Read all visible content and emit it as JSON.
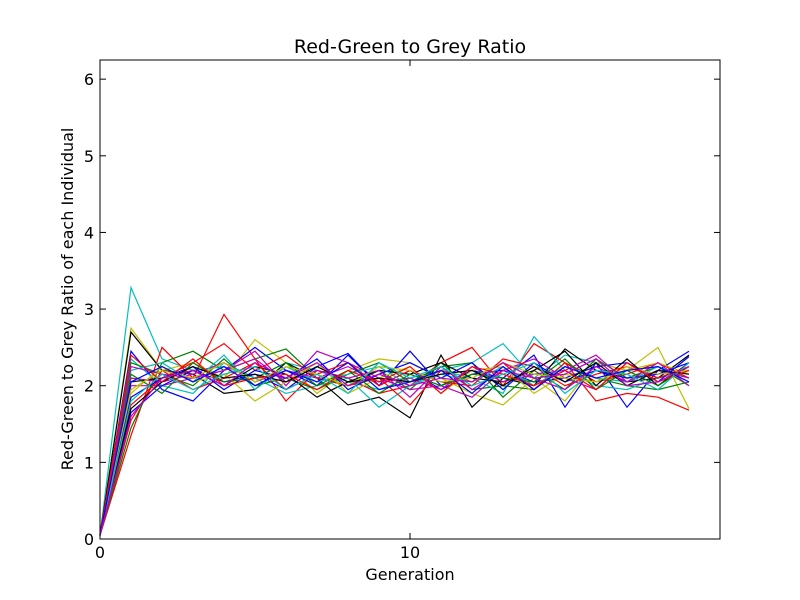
{
  "chart_data": {
    "type": "line",
    "title": "Red-Green to Grey Ratio",
    "xlabel": "Generation",
    "ylabel": "Red-Green to Grey Ratio of each Individual",
    "xlim": [
      0,
      20
    ],
    "ylim": [
      0,
      6.25
    ],
    "x_ticks": [
      0,
      10
    ],
    "y_ticks": [
      0,
      1,
      2,
      3,
      4,
      5,
      6
    ],
    "x_tick_labels": [
      "0",
      "10"
    ],
    "y_tick_labels": [
      "0",
      "1",
      "2",
      "3",
      "4",
      "5",
      "6"
    ],
    "grid": false,
    "legend": "none",
    "x": [
      0,
      1,
      2,
      3,
      4,
      5,
      6,
      7,
      8,
      9,
      10,
      11,
      12,
      13,
      14,
      15,
      16,
      17,
      18,
      19
    ],
    "series": [
      {
        "color": "#00bfbf",
        "values": [
          0.05,
          3.28,
          2.35,
          2.2,
          2.25,
          2.1,
          2.3,
          2.2,
          2.05,
          1.95,
          2.1,
          2.2,
          2.3,
          2.55,
          2.1,
          2.4,
          2.3,
          2.2,
          2.25,
          2.1
        ]
      },
      {
        "color": "#bfbf00",
        "values": [
          0.05,
          2.75,
          2.2,
          2.3,
          2.1,
          2.6,
          2.3,
          1.9,
          2.2,
          2.35,
          2.3,
          2.1,
          1.9,
          1.75,
          2.1,
          1.8,
          2.3,
          2.2,
          2.5,
          1.7
        ]
      },
      {
        "color": "#000000",
        "values": [
          0.05,
          2.7,
          2.2,
          2.15,
          1.9,
          1.95,
          2.3,
          2.1,
          1.75,
          1.85,
          1.58,
          2.4,
          1.72,
          2.1,
          2.0,
          2.48,
          2.2,
          2.05,
          2.1,
          2.4
        ]
      },
      {
        "color": "#ff0000",
        "values": [
          0.05,
          1.35,
          2.5,
          2.1,
          2.93,
          2.35,
          1.8,
          2.2,
          2.1,
          1.9,
          2.0,
          2.3,
          2.5,
          2.0,
          2.55,
          2.3,
          1.8,
          1.9,
          1.85,
          1.68
        ]
      },
      {
        "color": "#0000ff",
        "values": [
          0.05,
          2.45,
          1.95,
          1.8,
          2.2,
          2.5,
          2.2,
          2.0,
          2.4,
          2.0,
          2.45,
          2.0,
          2.2,
          2.1,
          2.4,
          1.72,
          2.3,
          1.72,
          2.2,
          2.45
        ]
      },
      {
        "color": "#008000",
        "values": [
          0.05,
          1.45,
          2.3,
          2.45,
          2.2,
          2.35,
          2.48,
          2.1,
          2.0,
          2.2,
          1.95,
          2.3,
          1.95,
          2.0,
          1.95,
          2.3,
          2.1,
          2.0,
          1.95,
          2.05
        ]
      },
      {
        "color": "#bf00bf",
        "values": [
          0.05,
          2.0,
          2.0,
          2.1,
          2.2,
          2.45,
          2.0,
          2.45,
          2.3,
          2.1,
          1.95,
          2.0,
          1.85,
          2.2,
          2.35,
          2.1,
          1.95,
          2.3,
          2.1,
          2.2
        ]
      },
      {
        "color": "#00bfbf",
        "values": [
          0.05,
          2.35,
          2.0,
          1.9,
          2.3,
          2.1,
          1.9,
          2.0,
          2.1,
          1.72,
          2.0,
          2.2,
          2.1,
          1.9,
          2.64,
          2.2,
          2.0,
          1.95,
          2.1,
          2.2
        ]
      },
      {
        "color": "#ff0000",
        "values": [
          0.05,
          1.75,
          2.1,
          2.3,
          2.55,
          2.2,
          2.4,
          2.1,
          2.0,
          2.1,
          1.75,
          2.2,
          2.05,
          2.3,
          1.95,
          2.3,
          2.05,
          2.15,
          2.3,
          2.1
        ]
      },
      {
        "color": "#0000ff",
        "values": [
          0.05,
          1.65,
          2.0,
          2.2,
          2.05,
          2.15,
          1.95,
          2.25,
          2.42,
          2.0,
          2.2,
          1.95,
          2.15,
          2.2,
          2.05,
          2.1,
          2.25,
          2.3,
          2.05,
          2.38
        ]
      },
      {
        "color": "#008000",
        "values": [
          0.05,
          2.3,
          2.15,
          2.0,
          2.35,
          2.0,
          2.1,
          1.95,
          2.15,
          2.3,
          2.05,
          2.25,
          2.3,
          1.85,
          2.2,
          1.95,
          2.35,
          2.1,
          2.25,
          2.0
        ]
      },
      {
        "color": "#bfbf00",
        "values": [
          0.05,
          1.9,
          2.25,
          2.05,
          2.15,
          1.8,
          2.05,
          2.3,
          1.9,
          2.1,
          2.25,
          1.9,
          2.2,
          2.25,
          1.9,
          2.15,
          2.05,
          2.2,
          2.3,
          2.15
        ]
      },
      {
        "color": "#000000",
        "values": [
          0.05,
          2.05,
          2.1,
          2.2,
          2.0,
          2.25,
          2.15,
          1.85,
          2.05,
          2.2,
          2.15,
          2.3,
          2.1,
          2.05,
          2.2,
          2.45,
          2.0,
          2.35,
          2.0,
          2.3
        ]
      },
      {
        "color": "#bf00bf",
        "values": [
          0.05,
          2.1,
          2.05,
          2.15,
          2.3,
          2.05,
          2.2,
          2.1,
          2.25,
          2.05,
          2.1,
          1.95,
          2.25,
          2.05,
          2.15,
          2.2,
          2.4,
          2.05,
          2.2,
          2.1
        ]
      },
      {
        "color": "#ff0000",
        "values": [
          0.05,
          1.55,
          2.2,
          1.95,
          2.1,
          2.3,
          1.95,
          2.15,
          2.3,
          2.0,
          2.2,
          2.05,
          2.0,
          2.35,
          2.25,
          2.0,
          2.15,
          2.25,
          2.1,
          2.25
        ]
      },
      {
        "color": "#00bfbf",
        "values": [
          0.05,
          2.2,
          2.3,
          2.05,
          2.4,
          1.95,
          2.25,
          2.05,
          2.15,
          2.25,
          2.0,
          2.15,
          2.05,
          2.25,
          2.0,
          2.25,
          2.1,
          2.05,
          2.25,
          2.05
        ]
      },
      {
        "color": "#0000ff",
        "values": [
          0.05,
          1.85,
          2.1,
          2.25,
          1.95,
          2.2,
          2.1,
          2.35,
          1.95,
          2.15,
          2.3,
          2.1,
          2.3,
          1.95,
          2.3,
          2.05,
          2.2,
          2.1,
          2.15,
          2.3
        ]
      },
      {
        "color": "#008000",
        "values": [
          0.05,
          2.15,
          1.9,
          2.3,
          2.05,
          2.1,
          2.3,
          2.0,
          2.2,
          1.9,
          2.15,
          2.0,
          2.15,
          2.1,
          2.05,
          2.35,
          1.95,
          2.2,
          2.0,
          2.25
        ]
      },
      {
        "color": "#bf00bf",
        "values": [
          0.05,
          2.25,
          2.15,
          2.1,
          2.2,
          2.35,
          2.05,
          2.2,
          2.1,
          2.2,
          1.85,
          2.25,
          1.95,
          2.2,
          2.1,
          1.95,
          2.25,
          2.05,
          2.3,
          2.0
        ]
      },
      {
        "color": "#bfbf00",
        "values": [
          0.05,
          1.95,
          2.2,
          2.1,
          2.3,
          2.05,
          2.25,
          2.15,
          2.0,
          2.25,
          2.2,
          2.05,
          2.1,
          2.3,
          2.15,
          2.1,
          2.05,
          2.25,
          2.15,
          2.2
        ]
      },
      {
        "color": "#000000",
        "values": [
          0.05,
          1.7,
          2.05,
          2.25,
          2.1,
          2.15,
          2.05,
          2.25,
          2.05,
          2.1,
          2.05,
          2.15,
          2.2,
          2.0,
          2.25,
          2.05,
          2.3,
          2.0,
          2.2,
          2.15
        ]
      },
      {
        "color": "#ff0000",
        "values": [
          0.05,
          2.4,
          2.05,
          2.35,
          2.0,
          2.1,
          2.15,
          1.95,
          2.2,
          2.05,
          2.25,
          1.9,
          2.25,
          2.15,
          2.0,
          2.2,
          1.95,
          2.3,
          2.05,
          2.2
        ]
      },
      {
        "color": "#00bfbf",
        "values": [
          0.05,
          1.8,
          2.15,
          1.95,
          2.15,
          2.25,
          1.95,
          2.15,
          1.9,
          2.3,
          2.1,
          2.25,
          2.0,
          2.15,
          2.3,
          1.9,
          2.2,
          2.15,
          1.95,
          2.3
        ]
      },
      {
        "color": "#0000ff",
        "values": [
          0.05,
          2.05,
          2.25,
          2.05,
          2.25,
          2.0,
          2.2,
          2.05,
          2.3,
          1.95,
          2.05,
          2.2,
          1.9,
          2.25,
          1.95,
          2.25,
          2.1,
          2.2,
          2.25,
          2.05
        ]
      },
      {
        "color": "#bf00bf",
        "values": [
          0.05,
          1.6,
          2.1,
          2.2,
          2.0,
          2.3,
          2.1,
          2.3,
          2.0,
          2.15,
          2.0,
          2.1,
          2.05,
          2.3,
          2.1,
          2.15,
          2.35,
          2.0,
          2.05,
          2.25
        ]
      }
    ]
  }
}
